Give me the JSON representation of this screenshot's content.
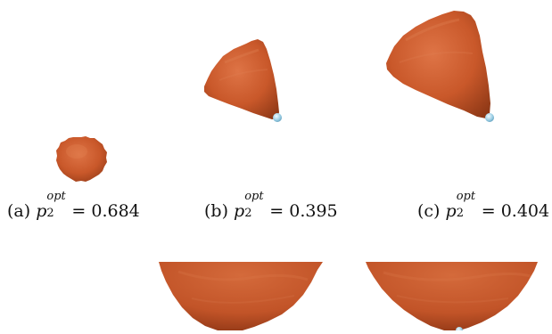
{
  "captions": [
    {
      "label": "(a)",
      "var": "p",
      "sub": "2",
      "sup": "opt",
      "eq": "= 0.684"
    },
    {
      "label": "(b)",
      "var": "p",
      "sub": "2",
      "sup": "opt",
      "eq": "= 0.395"
    },
    {
      "label": "(c)",
      "var": "p",
      "sub": "2",
      "sup": "opt",
      "eq": "= 0.404"
    }
  ],
  "colors": {
    "shape_fill": "#c9582a",
    "shape_shadow": "#8e3816",
    "shape_highlight": "#e0784a",
    "marker": "#9fd0e6"
  }
}
